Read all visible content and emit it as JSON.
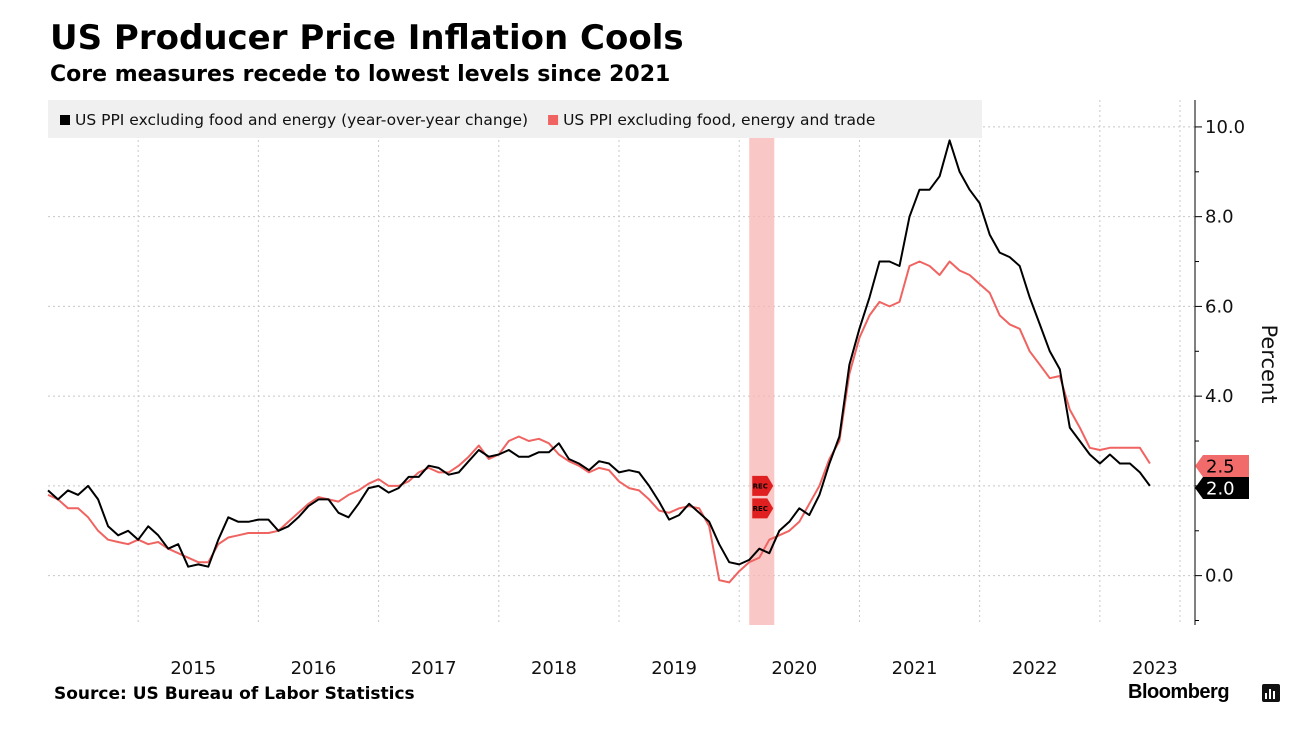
{
  "header": {
    "title": "US Producer Price Inflation Cools",
    "subtitle": "Core measures recede to lowest levels since 2021"
  },
  "footer": {
    "source": "Source: US Bureau of Labor Statistics",
    "brand": "Bloomberg"
  },
  "chart_data": {
    "type": "line",
    "title": "US Producer Price Inflation Cools",
    "subtitle": "Core measures recede to lowest levels since 2021",
    "ylabel": "Percent",
    "xlabel": "",
    "ylim": [
      -1.1,
      10.6
    ],
    "xlim": [
      "2014-04",
      "2023-09"
    ],
    "y_ticks": [
      0.0,
      2.0,
      4.0,
      6.0,
      8.0,
      10.0
    ],
    "y_tick_labels": [
      "0.0",
      "2.0",
      "4.0",
      "6.0",
      "8.0",
      "10.0"
    ],
    "x_tick_labels": [
      "2015",
      "2016",
      "2017",
      "2018",
      "2019",
      "2020",
      "2021",
      "2022",
      "2023"
    ],
    "grid": true,
    "legend_position": "top-left",
    "recession": {
      "label": "REC",
      "start": "2020-02",
      "end": "2020-04",
      "color": "#f8b4b4"
    },
    "series": [
      {
        "name": "US PPI excluding food and energy (year-over-year change)",
        "color": "#000000",
        "end_label": "2.0",
        "start": "2014-04",
        "values": [
          1.9,
          1.7,
          1.9,
          1.8,
          2.0,
          1.7,
          1.1,
          0.9,
          1.0,
          0.8,
          1.1,
          0.9,
          0.6,
          0.7,
          0.2,
          0.25,
          0.2,
          0.8,
          1.3,
          1.2,
          1.2,
          1.25,
          1.25,
          1.0,
          1.1,
          1.3,
          1.55,
          1.7,
          1.7,
          1.4,
          1.3,
          1.6,
          1.95,
          2.0,
          1.85,
          1.95,
          2.2,
          2.2,
          2.45,
          2.4,
          2.25,
          2.3,
          2.55,
          2.8,
          2.65,
          2.7,
          2.8,
          2.65,
          2.65,
          2.75,
          2.75,
          2.95,
          2.6,
          2.5,
          2.35,
          2.55,
          2.5,
          2.3,
          2.35,
          2.3,
          2.0,
          1.65,
          1.25,
          1.35,
          1.6,
          1.4,
          1.2,
          0.7,
          0.3,
          0.25,
          0.35,
          0.6,
          0.5,
          1.0,
          1.2,
          1.5,
          1.35,
          1.8,
          2.5,
          3.1,
          4.7,
          5.5,
          6.2,
          7.0,
          7.0,
          6.9,
          8.0,
          8.6,
          8.6,
          8.9,
          9.7,
          9.0,
          8.6,
          8.3,
          7.6,
          7.2,
          7.1,
          6.9,
          6.2,
          5.6,
          5.0,
          4.6,
          3.3,
          3.0,
          2.7,
          2.5,
          2.7,
          2.5,
          2.5,
          2.3,
          2.0
        ]
      },
      {
        "name": "US PPI excluding food, energy and trade",
        "color": "#ef6461",
        "end_label": "2.5",
        "start": "2014-04",
        "values": [
          1.8,
          1.7,
          1.5,
          1.5,
          1.3,
          1.0,
          0.8,
          0.75,
          0.7,
          0.8,
          0.7,
          0.75,
          0.6,
          0.5,
          0.4,
          0.3,
          0.3,
          0.7,
          0.85,
          0.9,
          0.95,
          0.95,
          0.95,
          1.0,
          1.2,
          1.4,
          1.6,
          1.75,
          1.7,
          1.65,
          1.8,
          1.9,
          2.05,
          2.15,
          2.0,
          2.0,
          2.1,
          2.3,
          2.4,
          2.3,
          2.3,
          2.45,
          2.65,
          2.9,
          2.6,
          2.7,
          3.0,
          3.1,
          3.0,
          3.05,
          2.95,
          2.7,
          2.55,
          2.45,
          2.3,
          2.4,
          2.35,
          2.1,
          1.95,
          1.9,
          1.7,
          1.45,
          1.4,
          1.5,
          1.55,
          1.5,
          1.1,
          -0.1,
          -0.15,
          0.1,
          0.3,
          0.4,
          0.8,
          0.9,
          1.0,
          1.2,
          1.6,
          2.0,
          2.6,
          3.0,
          4.5,
          5.3,
          5.8,
          6.1,
          6.0,
          6.1,
          6.9,
          7.0,
          6.9,
          6.7,
          7.0,
          6.8,
          6.7,
          6.5,
          6.3,
          5.8,
          5.6,
          5.5,
          5.0,
          4.7,
          4.4,
          4.45,
          3.7,
          3.3,
          2.85,
          2.8,
          2.85,
          2.85,
          2.85,
          2.85,
          2.5
        ]
      }
    ]
  }
}
